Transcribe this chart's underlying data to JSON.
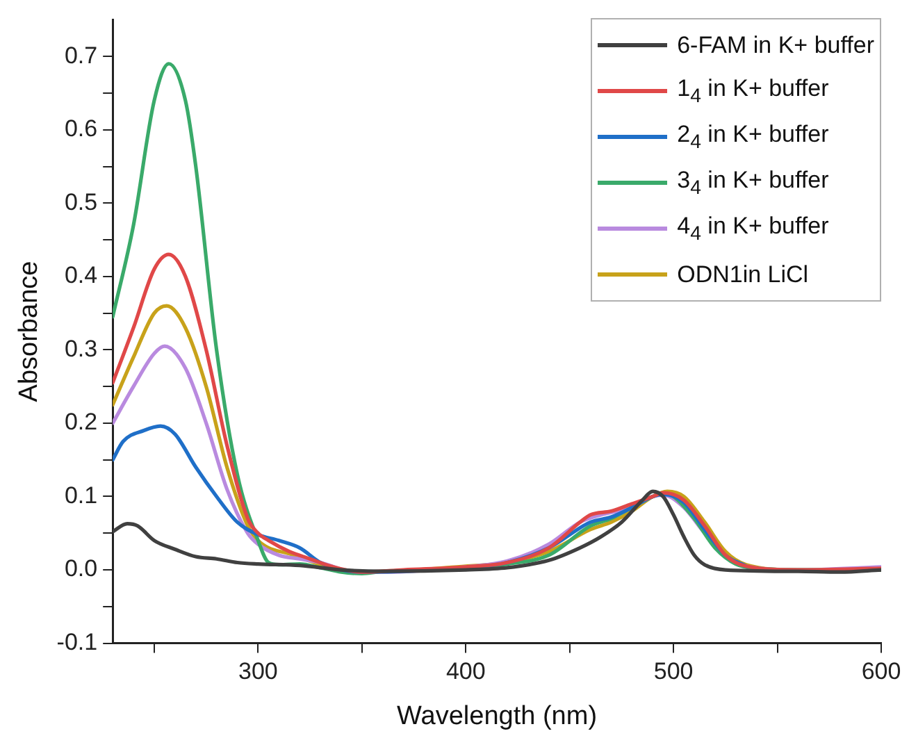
{
  "chart_data": {
    "type": "line",
    "xlabel": "Wavelength (nm)",
    "ylabel": "Absorbance",
    "xlim": [
      230,
      600
    ],
    "ylim": [
      -0.1,
      0.75
    ],
    "xticks": [
      {
        "value": 250,
        "label": null
      },
      300,
      {
        "value": 350,
        "label": null
      },
      400,
      {
        "value": 450,
        "label": null
      },
      500,
      {
        "value": 550,
        "label": null
      },
      600
    ],
    "yticks": [
      {
        "value": -0.1,
        "label": "-0.1"
      },
      {
        "value": -0.05,
        "label": null
      },
      {
        "value": 0,
        "label": "0.0"
      },
      {
        "value": 0.05,
        "label": null
      },
      0.1,
      {
        "value": 0.15,
        "label": null
      },
      0.2,
      {
        "value": 0.25,
        "label": null
      },
      0.3,
      {
        "value": 0.35,
        "label": null
      },
      0.4,
      {
        "value": 0.45,
        "label": null
      },
      0.5,
      {
        "value": 0.55,
        "label": null
      },
      0.6,
      {
        "value": 0.65,
        "label": null
      },
      0.7
    ],
    "grid": false,
    "legend": "top right",
    "marker": "none",
    "line_style": "solid",
    "series": [
      {
        "name": "6-FAM in K+ buffer",
        "color": "#404040",
        "x": [
          230,
          237,
          242,
          250,
          260,
          270,
          280,
          290,
          300,
          320,
          340,
          360,
          400,
          420,
          440,
          455,
          465,
          475,
          485,
          490,
          495,
          500,
          505,
          510,
          515,
          525,
          560,
          580,
          600
        ],
        "values": [
          0.052,
          0.063,
          0.06,
          0.04,
          0.028,
          0.018,
          0.015,
          0.01,
          0.008,
          0.006,
          0.0,
          -0.002,
          0.0,
          0.003,
          0.013,
          0.03,
          0.045,
          0.065,
          0.095,
          0.107,
          0.1,
          0.075,
          0.045,
          0.02,
          0.007,
          0.0,
          -0.002,
          -0.003,
          0.0
        ]
      },
      {
        "name": "1$_{4}$ in K+ buffer",
        "color": "#e04848",
        "x": [
          230,
          240,
          250,
          257,
          265,
          275,
          285,
          295,
          300,
          305,
          315,
          325,
          335,
          350,
          370,
          400,
          420,
          440,
          455,
          460,
          470,
          480,
          490,
          495,
          505,
          515,
          525,
          535,
          560,
          600
        ],
        "values": [
          0.255,
          0.33,
          0.41,
          0.43,
          0.4,
          0.3,
          0.17,
          0.07,
          0.05,
          0.04,
          0.025,
          0.015,
          0.005,
          -0.003,
          0.0,
          0.004,
          0.01,
          0.03,
          0.065,
          0.075,
          0.08,
          0.09,
          0.1,
          0.105,
          0.095,
          0.06,
          0.02,
          0.005,
          0.0,
          0.002
        ]
      },
      {
        "name": "2$_{4}$ in K+ buffer",
        "color": "#1f6fc8",
        "x": [
          230,
          235,
          245,
          253,
          260,
          270,
          280,
          290,
          300,
          310,
          320,
          330,
          340,
          350,
          400,
          420,
          440,
          460,
          470,
          480,
          490,
          495,
          505,
          515,
          525,
          535
        ],
        "values": [
          0.15,
          0.175,
          0.19,
          0.196,
          0.185,
          0.14,
          0.1,
          0.065,
          0.048,
          0.04,
          0.03,
          0.01,
          0.0,
          -0.003,
          0.003,
          0.01,
          0.03,
          0.065,
          0.072,
          0.085,
          0.1,
          0.103,
          0.092,
          0.055,
          0.02,
          0.005
        ]
      },
      {
        "name": "3$_{4}$ in K+ buffer",
        "color": "#3aaa6a",
        "x": [
          230,
          240,
          250,
          257,
          265,
          270,
          280,
          290,
          300,
          305,
          310,
          320,
          330,
          340,
          350,
          360,
          380,
          400,
          420,
          440,
          460,
          470,
          480,
          490,
          495,
          500,
          510,
          520,
          530,
          540,
          560,
          600
        ],
        "values": [
          0.345,
          0.47,
          0.64,
          0.69,
          0.64,
          0.55,
          0.3,
          0.13,
          0.04,
          0.01,
          0.007,
          0.008,
          0.003,
          -0.003,
          -0.005,
          -0.002,
          0.0,
          0.002,
          0.008,
          0.02,
          0.06,
          0.07,
          0.085,
          0.1,
          0.104,
          0.1,
          0.07,
          0.03,
          0.008,
          0.002,
          0.0,
          0.0
        ]
      },
      {
        "name": "4$_{4}$ in K+ buffer",
        "color": "#b98adf",
        "x": [
          230,
          240,
          250,
          255,
          265,
          275,
          285,
          295,
          300,
          310,
          320,
          330,
          345,
          360,
          400,
          420,
          440,
          455,
          465,
          480,
          490,
          495,
          505,
          515,
          525,
          535,
          560,
          600
        ],
        "values": [
          0.2,
          0.25,
          0.295,
          0.305,
          0.275,
          0.2,
          0.11,
          0.05,
          0.035,
          0.02,
          0.015,
          0.01,
          -0.002,
          -0.003,
          0.004,
          0.012,
          0.035,
          0.065,
          0.075,
          0.085,
          0.1,
          0.102,
          0.085,
          0.05,
          0.018,
          0.005,
          0.0,
          0.004
        ]
      },
      {
        "name": "ODN1in LiCl",
        "color": "#c8a21a",
        "x": [
          230,
          240,
          250,
          256,
          265,
          275,
          285,
          295,
          300,
          305,
          315,
          325,
          335,
          350,
          400,
          420,
          440,
          460,
          470,
          480,
          490,
          497,
          505,
          515,
          525,
          535,
          560,
          600
        ],
        "values": [
          0.225,
          0.29,
          0.35,
          0.36,
          0.33,
          0.25,
          0.14,
          0.06,
          0.04,
          0.03,
          0.022,
          0.012,
          0.003,
          -0.003,
          0.005,
          0.01,
          0.025,
          0.055,
          0.065,
          0.08,
          0.1,
          0.107,
          0.1,
          0.065,
          0.025,
          0.007,
          0.0,
          0.0
        ]
      }
    ]
  }
}
